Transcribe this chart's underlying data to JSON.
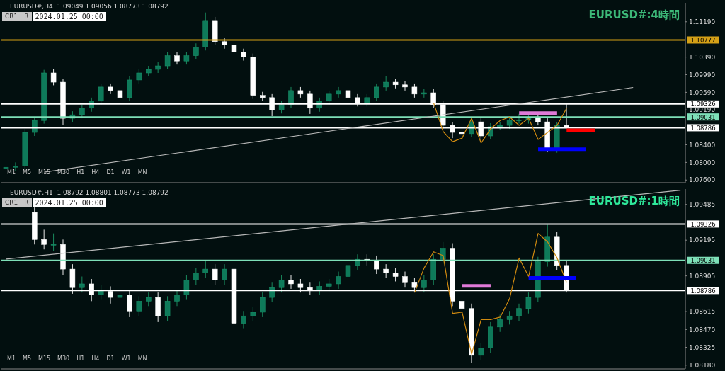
{
  "chart_data": [
    {
      "type": "candlestick",
      "title": "EURUSD#:4時間",
      "annotations": [
        "EURUSD#,H4  1.09049 1.09056 1.08773 1.08792",
        "CR1",
        "R",
        "2024.01.25 00:00",
        "M1",
        "M5",
        "M15",
        "M30",
        "H1",
        "H4",
        "D1",
        "W1",
        "MN"
      ],
      "categories": [
        null,
        null,
        null,
        null,
        null,
        null,
        null,
        null,
        null,
        null,
        null,
        null,
        null,
        null,
        null,
        null,
        null,
        null,
        null,
        null,
        null,
        null,
        null,
        null,
        null,
        null,
        null,
        null,
        null,
        null,
        null,
        null,
        null,
        null,
        null,
        null,
        null,
        null,
        null,
        null,
        null,
        null,
        null,
        null,
        null,
        null,
        null,
        null,
        null,
        null,
        null,
        null,
        null,
        null,
        null,
        null,
        null,
        null,
        null,
        null,
        null,
        null,
        null,
        null,
        null,
        null,
        null,
        null,
        null,
        null,
        null,
        null
      ],
      "ohlc": [
        [
          1.0785,
          1.0797,
          1.0778,
          1.0789
        ],
        [
          1.0789,
          1.08,
          1.0781,
          1.0792
        ],
        [
          1.0792,
          1.0876,
          1.0786,
          1.0868
        ],
        [
          1.0868,
          1.0903,
          1.086,
          1.0895
        ],
        [
          1.0895,
          1.101,
          1.0888,
          1.1003
        ],
        [
          1.1003,
          1.1012,
          1.0975,
          1.0982
        ],
        [
          1.0982,
          1.099,
          1.0885,
          1.09
        ],
        [
          1.09,
          1.0916,
          1.0892,
          1.0908
        ],
        [
          1.0908,
          1.0931,
          1.09,
          1.0923
        ],
        [
          1.0923,
          1.0947,
          1.0915,
          1.0939
        ],
        [
          1.0939,
          1.0979,
          1.0931,
          1.0971
        ],
        [
          1.0971,
          1.0979,
          1.0955,
          1.0963
        ],
        [
          1.0963,
          1.0971,
          1.0939,
          1.0947
        ],
        [
          1.0947,
          1.0995,
          1.0939,
          1.0987
        ],
        [
          1.0987,
          1.1011,
          1.0979,
          1.1003
        ],
        [
          1.1003,
          1.1019,
          1.0995,
          1.1011
        ],
        [
          1.1011,
          1.1027,
          1.1003,
          1.1019
        ],
        [
          1.1019,
          1.105,
          1.1011,
          1.1042
        ],
        [
          1.1042,
          1.105,
          1.1022,
          1.103
        ],
        [
          1.103,
          1.105,
          1.1022,
          1.1042
        ],
        [
          1.1042,
          1.107,
          1.1034,
          1.1062
        ],
        [
          1.1062,
          1.114,
          1.1054,
          1.1122
        ],
        [
          1.1122,
          1.113,
          1.1066,
          1.1074
        ],
        [
          1.1074,
          1.1082,
          1.1058,
          1.1066
        ],
        [
          1.1066,
          1.1074,
          1.1042,
          1.105
        ],
        [
          1.105,
          1.1058,
          1.1031,
          1.1039
        ],
        [
          1.1039,
          1.1047,
          1.0944,
          1.0952
        ],
        [
          1.0952,
          1.096,
          1.0939,
          1.0947
        ],
        [
          1.0947,
          1.0955,
          1.0905,
          1.0919
        ],
        [
          1.0919,
          1.0939,
          1.0911,
          1.0931
        ],
        [
          1.0931,
          1.0971,
          1.0923,
          1.0963
        ],
        [
          1.0963,
          1.0971,
          1.0947,
          1.0955
        ],
        [
          1.0955,
          1.0963,
          1.091,
          1.0923
        ],
        [
          1.0923,
          1.0947,
          1.0915,
          1.0939
        ],
        [
          1.0939,
          1.0963,
          1.0931,
          1.0955
        ],
        [
          1.0955,
          1.0971,
          1.0947,
          1.0963
        ],
        [
          1.0963,
          1.0971,
          1.0939,
          1.0947
        ],
        [
          1.0947,
          1.0955,
          1.0927,
          1.0935
        ],
        [
          1.0935,
          1.0955,
          1.0927,
          1.0947
        ],
        [
          1.0947,
          1.0979,
          1.0939,
          1.0971
        ],
        [
          1.0971,
          1.0995,
          1.0963,
          1.0982
        ],
        [
          1.0982,
          1.099,
          1.0968,
          1.0976
        ],
        [
          1.0976,
          1.0984,
          1.0963,
          1.0971
        ],
        [
          1.0971,
          1.0979,
          1.0947,
          1.0955
        ],
        [
          1.0955,
          1.0966,
          1.0947,
          1.0958
        ],
        [
          1.0958,
          1.0966,
          1.0923,
          1.0931
        ],
        [
          1.0931,
          1.0939,
          1.0876,
          1.0884
        ],
        [
          1.0884,
          1.0892,
          1.0855,
          1.0868
        ],
        [
          1.0868,
          1.088,
          1.085,
          1.0865
        ],
        [
          1.0865,
          1.09,
          1.0857,
          1.0892
        ],
        [
          1.0892,
          1.09,
          1.085,
          1.086
        ],
        [
          1.086,
          1.0889,
          1.0852,
          1.0881
        ],
        [
          1.0881,
          1.0892,
          1.0873,
          1.0884
        ],
        [
          1.0884,
          1.0904,
          1.0876,
          1.0896
        ],
        [
          1.0896,
          1.091,
          1.0888,
          1.0896
        ],
        [
          1.0896,
          1.0911,
          1.0888,
          1.0903
        ],
        [
          1.0903,
          1.0911,
          1.0884,
          1.0892
        ],
        [
          1.0892,
          1.09,
          1.0823,
          1.0831
        ],
        [
          1.0831,
          1.0892,
          1.0822,
          1.0884
        ],
        [
          1.0884,
          1.0933,
          1.0877,
          1.0879
        ],
        null,
        null,
        null,
        null,
        null,
        null,
        null,
        null,
        null,
        null,
        null,
        null
      ],
      "series": [
        {
          "type": "line",
          "color": "#b8b8b8",
          "values": [
            null,
            null,
            null,
            null,
            1.0778,
            null,
            null,
            null,
            null,
            null,
            null,
            null,
            null,
            null,
            null,
            null,
            null,
            null,
            null,
            null,
            null,
            null,
            null,
            null,
            null,
            null,
            null,
            null,
            null,
            null,
            null,
            null,
            null,
            null,
            null,
            null,
            null,
            null,
            null,
            null,
            null,
            null,
            null,
            null,
            null,
            null,
            null,
            null,
            null,
            null,
            null,
            null,
            null,
            null,
            null,
            null,
            null,
            null,
            null,
            null,
            null,
            null,
            null,
            null,
            null,
            null,
            1.097,
            null,
            null,
            null,
            null,
            null
          ]
        },
        {
          "type": "line",
          "color": "#d08a10",
          "values": [
            null,
            null,
            null,
            null,
            null,
            null,
            null,
            null,
            null,
            null,
            null,
            null,
            null,
            null,
            null,
            null,
            null,
            null,
            null,
            null,
            null,
            null,
            null,
            null,
            null,
            null,
            null,
            null,
            null,
            null,
            null,
            null,
            null,
            null,
            null,
            null,
            null,
            null,
            null,
            null,
            null,
            null,
            null,
            null,
            null,
            1.0935,
            1.087,
            1.0847,
            1.0855,
            1.09,
            1.0844,
            1.0876,
            1.0895,
            1.0903,
            1.0884,
            1.09,
            1.0852,
            null,
            1.0884,
            1.0923,
            null,
            null,
            null,
            null,
            null,
            null,
            null,
            null,
            null,
            null,
            null,
            null
          ]
        },
        {
          "type": "line",
          "color": "#e07ad8",
          "values": [
            null,
            null,
            null,
            null,
            null,
            null,
            null,
            null,
            null,
            null,
            null,
            null,
            null,
            null,
            null,
            null,
            null,
            null,
            null,
            null,
            null,
            null,
            null,
            null,
            null,
            null,
            null,
            null,
            null,
            null,
            null,
            null,
            null,
            null,
            null,
            null,
            null,
            null,
            null,
            null,
            null,
            null,
            null,
            null,
            null,
            null,
            null,
            null,
            null,
            null,
            null,
            null,
            null,
            null,
            1.0912,
            null,
            null,
            null,
            1.0912,
            null,
            null,
            null,
            null,
            null,
            null,
            null,
            null,
            null,
            null,
            null,
            null,
            null
          ]
        },
        {
          "type": "line",
          "color": "#ff0000",
          "values": [
            null,
            null,
            null,
            null,
            null,
            null,
            null,
            null,
            null,
            null,
            null,
            null,
            null,
            null,
            null,
            null,
            null,
            null,
            null,
            null,
            null,
            null,
            null,
            null,
            null,
            null,
            null,
            null,
            null,
            null,
            null,
            null,
            null,
            null,
            null,
            null,
            null,
            null,
            null,
            null,
            null,
            null,
            null,
            null,
            null,
            null,
            null,
            null,
            null,
            null,
            null,
            null,
            null,
            null,
            null,
            null,
            null,
            null,
            null,
            1.0873,
            null,
            null,
            1.0873,
            null,
            null,
            null,
            null,
            null,
            null,
            null,
            null,
            null
          ]
        },
        {
          "type": "line",
          "color": "#0000ff",
          "values": [
            null,
            null,
            null,
            null,
            null,
            null,
            null,
            null,
            null,
            null,
            null,
            null,
            null,
            null,
            null,
            null,
            null,
            null,
            null,
            null,
            null,
            null,
            null,
            null,
            null,
            null,
            null,
            null,
            null,
            null,
            null,
            null,
            null,
            null,
            null,
            null,
            null,
            null,
            null,
            null,
            null,
            null,
            null,
            null,
            null,
            null,
            null,
            null,
            null,
            null,
            null,
            null,
            null,
            null,
            null,
            null,
            1.083,
            null,
            null,
            null,
            null,
            1.083,
            null,
            null,
            null,
            null,
            null,
            null,
            null,
            null,
            null,
            null
          ]
        }
      ],
      "ref_lines": [
        {
          "axis": "y",
          "value": 1.10777,
          "label": "1.10777",
          "color": "#d4a017"
        },
        {
          "axis": "y",
          "value": 1.09326,
          "label": "1.09326",
          "color": "#ffffff"
        },
        {
          "axis": "y",
          "value": 1.09031,
          "label": "1.09031",
          "color": "#7ee0b8"
        },
        {
          "axis": "y",
          "value": 1.08786,
          "label": "1.08786",
          "color": "#ffffff"
        }
      ],
      "ylim": [
        1.0754,
        1.1162
      ],
      "yticks": [
        {
          "value": 1.076,
          "label": "1.07600"
        },
        {
          "value": 1.08,
          "label": "1.08000"
        },
        {
          "value": 1.084,
          "label": "1.08400"
        },
        {
          "value": 1.0919,
          "label": "1.09190"
        },
        {
          "value": 1.0959,
          "label": "1.09590"
        },
        {
          "value": 1.0999,
          "label": "1.09990"
        },
        {
          "value": 1.1039,
          "label": "1.10390"
        },
        {
          "value": 1.1119,
          "label": "1.11190"
        }
      ],
      "tick_labels": "y"
    },
    {
      "type": "candlestick",
      "title": "EURUSD#:1時間",
      "annotations": [
        "EURUSD#,H1  1.08792 1.08801 1.08773 1.08792",
        "CR1",
        "R",
        "2024.01.25 00:00",
        "M1",
        "M5",
        "M15",
        "M30",
        "H1",
        "H4",
        "D1",
        "W1",
        "MN"
      ],
      "categories": [
        null,
        null,
        null,
        null,
        null,
        null,
        null,
        null,
        null,
        null,
        null,
        null,
        null,
        null,
        null,
        null,
        null,
        null,
        null,
        null,
        null,
        null,
        null,
        null,
        null,
        null,
        null,
        null,
        null,
        null,
        null,
        null,
        null,
        null,
        null,
        null,
        null,
        null,
        null,
        null,
        null,
        null,
        null,
        null,
        null,
        null,
        null,
        null,
        null,
        null,
        null,
        null,
        null,
        null,
        null,
        null,
        null,
        null,
        null,
        null,
        null,
        null,
        null,
        null,
        null,
        null,
        null,
        null,
        null,
        null,
        null,
        null
      ],
      "ohlc": [
        null,
        null,
        null,
        [
          1.0942,
          1.0946,
          1.0916,
          1.092
        ],
        [
          1.092,
          1.0928,
          1.0912,
          1.0916
        ],
        [
          1.0916,
          1.0925,
          1.0911,
          1.0916
        ],
        [
          1.0916,
          1.092,
          1.0891,
          1.0896
        ],
        [
          1.0896,
          1.09,
          1.0876,
          1.0881
        ],
        [
          1.0881,
          1.089,
          1.0877,
          1.0884
        ],
        [
          1.0884,
          1.0888,
          1.087,
          1.0875
        ],
        [
          1.0875,
          1.0883,
          1.0871,
          1.0878
        ],
        [
          1.0878,
          1.0882,
          1.0868,
          1.0873
        ],
        [
          1.0873,
          1.088,
          1.0869,
          1.0875
        ],
        [
          1.0875,
          1.0879,
          1.0857,
          1.0862
        ],
        [
          1.0862,
          1.0874,
          1.0858,
          1.087
        ],
        [
          1.087,
          1.0877,
          1.0866,
          1.0873
        ],
        [
          1.0873,
          1.0877,
          1.0853,
          1.0858
        ],
        [
          1.0858,
          1.0874,
          1.0854,
          1.087
        ],
        [
          1.087,
          1.0879,
          1.0866,
          1.0875
        ],
        [
          1.0875,
          1.0891,
          1.0871,
          1.0887
        ],
        [
          1.0887,
          1.0897,
          1.0883,
          1.0893
        ],
        [
          1.0893,
          1.0903,
          1.0889,
          1.0896
        ],
        [
          1.0896,
          1.09,
          1.0883,
          1.0887
        ],
        [
          1.0887,
          1.09,
          1.0883,
          1.0896
        ],
        [
          1.0896,
          1.09,
          1.0847,
          1.0852
        ],
        [
          1.0852,
          1.0862,
          1.0848,
          1.0858
        ],
        [
          1.0858,
          1.0865,
          1.0854,
          1.0861
        ],
        [
          1.0861,
          1.0877,
          1.0857,
          1.0873
        ],
        [
          1.0873,
          1.0885,
          1.0869,
          1.0881
        ],
        [
          1.0881,
          1.0891,
          1.0877,
          1.0887
        ],
        [
          1.0887,
          1.0891,
          1.088,
          1.0884
        ],
        [
          1.0884,
          1.0888,
          1.0877,
          1.0881
        ],
        [
          1.0881,
          1.0885,
          1.0875,
          1.0879
        ],
        [
          1.0879,
          1.0886,
          1.0875,
          1.0882
        ],
        [
          1.0882,
          1.0888,
          1.0878,
          1.0884
        ],
        [
          1.0884,
          1.0894,
          1.088,
          1.089
        ],
        [
          1.089,
          1.0903,
          1.0886,
          1.0899
        ],
        [
          1.0899,
          1.0908,
          1.0895,
          1.0904
        ],
        [
          1.0904,
          1.0908,
          1.0899,
          1.0903
        ],
        [
          1.0903,
          1.0907,
          1.0892,
          1.0896
        ],
        [
          1.0896,
          1.09,
          1.0889,
          1.0893
        ],
        [
          1.0893,
          1.0897,
          1.0886,
          1.089
        ],
        [
          1.089,
          1.0894,
          1.0881,
          1.0885
        ],
        [
          1.0885,
          1.0889,
          1.0877,
          1.0881
        ],
        [
          1.0881,
          1.0891,
          1.0877,
          1.0887
        ],
        [
          1.0887,
          1.0908,
          1.0883,
          1.0904
        ],
        [
          1.0904,
          1.0918,
          1.09,
          1.0913
        ],
        [
          1.0913,
          1.0917,
          1.0866,
          1.087
        ],
        [
          1.087,
          1.0874,
          1.086,
          1.0864
        ],
        [
          1.0864,
          1.0868,
          1.082,
          1.0826
        ],
        [
          1.0826,
          1.0836,
          1.0822,
          1.0832
        ],
        [
          1.0832,
          1.0853,
          1.0828,
          1.0849
        ],
        [
          1.0849,
          1.0859,
          1.0845,
          1.0855
        ],
        [
          1.0855,
          1.0862,
          1.0851,
          1.0858
        ],
        [
          1.0858,
          1.0868,
          1.0854,
          1.0864
        ],
        [
          1.0864,
          1.0877,
          1.086,
          1.0873
        ],
        [
          1.0873,
          1.0906,
          1.0869,
          1.0902
        ],
        [
          1.0902,
          1.0932,
          1.0898,
          1.0922
        ],
        [
          1.0922,
          1.0926,
          1.0895,
          1.0899
        ],
        [
          1.0899,
          1.0903,
          1.0877,
          1.0879
        ],
        null,
        null,
        null,
        null,
        null,
        null,
        null,
        null,
        null,
        null,
        null,
        null
      ],
      "series": [
        {
          "type": "line",
          "color": "#b8b8b8",
          "values": [
            1.09042,
            null,
            null,
            null,
            null,
            null,
            null,
            null,
            null,
            null,
            null,
            null,
            null,
            null,
            null,
            null,
            null,
            null,
            null,
            null,
            null,
            null,
            null,
            null,
            null,
            null,
            null,
            null,
            null,
            null,
            null,
            null,
            null,
            null,
            null,
            null,
            null,
            null,
            null,
            null,
            null,
            null,
            null,
            null,
            null,
            null,
            null,
            null,
            null,
            null,
            null,
            null,
            null,
            null,
            null,
            null,
            null,
            null,
            null,
            null,
            null,
            null,
            null,
            null,
            null,
            null,
            null,
            null,
            null,
            null,
            null,
            1.09601
          ]
        },
        {
          "type": "line",
          "color": "#d08a10",
          "values": [
            null,
            null,
            null,
            null,
            null,
            null,
            null,
            null,
            null,
            null,
            null,
            null,
            null,
            null,
            null,
            null,
            null,
            null,
            null,
            null,
            null,
            null,
            null,
            null,
            null,
            null,
            null,
            null,
            null,
            null,
            null,
            null,
            null,
            null,
            null,
            null,
            null,
            null,
            null,
            null,
            null,
            null,
            null,
            1.0877,
            1.0897,
            1.091,
            1.0907,
            1.086,
            1.0861,
            1.0827,
            1.0855,
            1.0855,
            1.0857,
            1.0872,
            1.0905,
            1.089,
            1.0925,
            1.0918,
            1.0905,
            1.0885,
            null,
            null,
            null,
            null,
            null,
            null,
            null,
            null,
            null,
            null,
            null,
            null
          ]
        },
        {
          "type": "line",
          "color": "#e07ad8",
          "values": [
            null,
            null,
            null,
            null,
            null,
            null,
            null,
            null,
            null,
            null,
            null,
            null,
            null,
            null,
            null,
            null,
            null,
            null,
            null,
            null,
            null,
            null,
            null,
            null,
            null,
            null,
            null,
            null,
            null,
            null,
            null,
            null,
            null,
            null,
            null,
            null,
            null,
            null,
            null,
            null,
            null,
            null,
            null,
            null,
            null,
            null,
            null,
            null,
            1.08824,
            null,
            null,
            1.08824,
            null,
            null,
            null,
            null,
            null,
            null,
            null,
            null,
            null,
            null,
            null,
            null,
            null,
            null,
            null,
            null,
            null,
            null,
            null,
            null
          ]
        },
        {
          "type": "line",
          "color": "#0000ff",
          "values": [
            null,
            null,
            null,
            null,
            null,
            null,
            null,
            null,
            null,
            null,
            null,
            null,
            null,
            null,
            null,
            null,
            null,
            null,
            null,
            null,
            null,
            null,
            null,
            null,
            null,
            null,
            null,
            null,
            null,
            null,
            null,
            null,
            null,
            null,
            null,
            null,
            null,
            null,
            null,
            null,
            null,
            null,
            null,
            null,
            null,
            null,
            null,
            null,
            null,
            null,
            null,
            null,
            null,
            null,
            null,
            1.08888,
            null,
            null,
            null,
            null,
            1.08888,
            null,
            null,
            null,
            null,
            null,
            null,
            null,
            null,
            null,
            null,
            null
          ]
        }
      ],
      "ref_lines": [
        {
          "axis": "y",
          "value": 1.09326,
          "label": "1.09326",
          "color": "#ffffff"
        },
        {
          "axis": "y",
          "value": 1.09031,
          "label": "1.09031",
          "color": "#7ee0b8"
        },
        {
          "axis": "y",
          "value": 1.08786,
          "label": "1.08786",
          "color": "#ffffff"
        }
      ],
      "ylim": [
        1.0815,
        1.0961
      ],
      "yticks": [
        {
          "value": 1.0818,
          "label": "1.08180"
        },
        {
          "value": 1.08325,
          "label": "1.08325"
        },
        {
          "value": 1.0847,
          "label": "1.08470"
        },
        {
          "value": 1.08615,
          "label": "1.08615"
        },
        {
          "value": 1.08905,
          "label": "1.08905"
        },
        {
          "value": 1.09195,
          "label": "1.09195"
        },
        {
          "value": 1.09485,
          "label": "1.09485"
        }
      ],
      "tick_labels": "y"
    }
  ]
}
